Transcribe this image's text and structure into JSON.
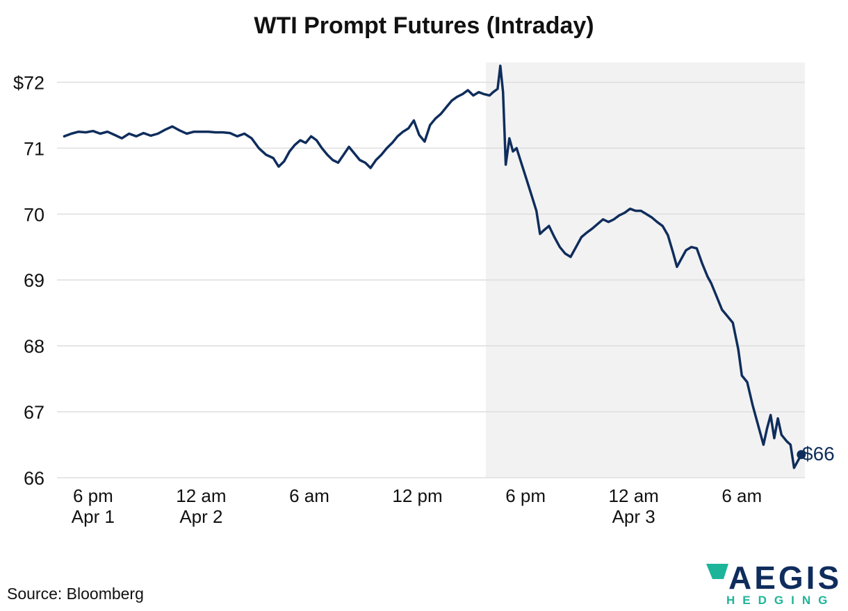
{
  "chart_data": {
    "type": "line",
    "title": "WTI Prompt Futures (Intraday)",
    "xlabel": "",
    "ylabel": "",
    "ylim": [
      66,
      72.3
    ],
    "yticks": [
      66,
      67,
      68,
      69,
      70,
      71,
      72
    ],
    "ytick_labels": [
      "66",
      "67",
      "68",
      "69",
      "70",
      "71",
      "$72"
    ],
    "x_unit": "hours since 4 pm Apr 1",
    "xlim": [
      0,
      41.5
    ],
    "xticks": [
      {
        "x": 2,
        "line1": "6 pm",
        "line2": "Apr 1"
      },
      {
        "x": 8,
        "line1": "12 am",
        "line2": "Apr 2"
      },
      {
        "x": 14,
        "line1": "6 am",
        "line2": ""
      },
      {
        "x": 20,
        "line1": "12 pm",
        "line2": ""
      },
      {
        "x": 26,
        "line1": "6 pm",
        "line2": ""
      },
      {
        "x": 32,
        "line1": "12 am",
        "line2": "Apr 3"
      },
      {
        "x": 38,
        "line1": "6 am",
        "line2": ""
      }
    ],
    "shaded_region": {
      "from": 23.8,
      "to": 41.5,
      "color": "#f2f2f2"
    },
    "grid": "horizontal",
    "series": [
      {
        "name": "WTI",
        "color": "#0f2d5c",
        "points": [
          [
            0.4,
            71.18
          ],
          [
            0.8,
            71.22
          ],
          [
            1.2,
            71.25
          ],
          [
            1.6,
            71.24
          ],
          [
            2.0,
            71.26
          ],
          [
            2.4,
            71.22
          ],
          [
            2.8,
            71.25
          ],
          [
            3.2,
            71.2
          ],
          [
            3.6,
            71.15
          ],
          [
            4.0,
            71.22
          ],
          [
            4.4,
            71.18
          ],
          [
            4.8,
            71.23
          ],
          [
            5.2,
            71.19
          ],
          [
            5.6,
            71.22
          ],
          [
            6.0,
            71.28
          ],
          [
            6.4,
            71.33
          ],
          [
            6.8,
            71.27
          ],
          [
            7.2,
            71.22
          ],
          [
            7.6,
            71.25
          ],
          [
            8.0,
            71.25
          ],
          [
            8.4,
            71.25
          ],
          [
            8.8,
            71.24
          ],
          [
            9.2,
            71.24
          ],
          [
            9.6,
            71.23
          ],
          [
            10.0,
            71.18
          ],
          [
            10.4,
            71.22
          ],
          [
            10.8,
            71.15
          ],
          [
            11.2,
            71.0
          ],
          [
            11.6,
            70.9
          ],
          [
            12.0,
            70.85
          ],
          [
            12.3,
            70.72
          ],
          [
            12.6,
            70.8
          ],
          [
            12.9,
            70.95
          ],
          [
            13.2,
            71.05
          ],
          [
            13.5,
            71.12
          ],
          [
            13.8,
            71.08
          ],
          [
            14.1,
            71.18
          ],
          [
            14.4,
            71.12
          ],
          [
            14.7,
            71.0
          ],
          [
            15.0,
            70.9
          ],
          [
            15.3,
            70.82
          ],
          [
            15.6,
            70.78
          ],
          [
            15.9,
            70.9
          ],
          [
            16.2,
            71.02
          ],
          [
            16.5,
            70.92
          ],
          [
            16.8,
            70.82
          ],
          [
            17.1,
            70.78
          ],
          [
            17.4,
            70.7
          ],
          [
            17.7,
            70.82
          ],
          [
            18.0,
            70.9
          ],
          [
            18.3,
            71.0
          ],
          [
            18.6,
            71.08
          ],
          [
            18.9,
            71.18
          ],
          [
            19.2,
            71.25
          ],
          [
            19.5,
            71.3
          ],
          [
            19.8,
            71.42
          ],
          [
            20.1,
            71.2
          ],
          [
            20.4,
            71.1
          ],
          [
            20.7,
            71.35
          ],
          [
            21.0,
            71.45
          ],
          [
            21.3,
            71.52
          ],
          [
            21.6,
            71.62
          ],
          [
            21.9,
            71.72
          ],
          [
            22.2,
            71.78
          ],
          [
            22.5,
            71.82
          ],
          [
            22.8,
            71.88
          ],
          [
            23.1,
            71.8
          ],
          [
            23.4,
            71.85
          ],
          [
            23.7,
            71.82
          ],
          [
            24.0,
            71.8
          ],
          [
            24.2,
            71.85
          ],
          [
            24.45,
            71.9
          ],
          [
            24.6,
            72.25
          ],
          [
            24.75,
            71.85
          ],
          [
            24.9,
            70.75
          ],
          [
            25.1,
            71.15
          ],
          [
            25.3,
            70.95
          ],
          [
            25.5,
            71.0
          ],
          [
            26.2,
            70.4
          ],
          [
            26.6,
            70.05
          ],
          [
            26.8,
            69.7
          ],
          [
            27.0,
            69.75
          ],
          [
            27.3,
            69.82
          ],
          [
            27.6,
            69.65
          ],
          [
            27.9,
            69.5
          ],
          [
            28.2,
            69.4
          ],
          [
            28.5,
            69.35
          ],
          [
            28.8,
            69.5
          ],
          [
            29.1,
            69.65
          ],
          [
            29.4,
            69.72
          ],
          [
            29.7,
            69.78
          ],
          [
            30.0,
            69.85
          ],
          [
            30.3,
            69.92
          ],
          [
            30.6,
            69.88
          ],
          [
            30.9,
            69.92
          ],
          [
            31.2,
            69.98
          ],
          [
            31.5,
            70.02
          ],
          [
            31.8,
            70.08
          ],
          [
            32.1,
            70.05
          ],
          [
            32.4,
            70.05
          ],
          [
            32.7,
            70.0
          ],
          [
            33.0,
            69.95
          ],
          [
            33.3,
            69.88
          ],
          [
            33.6,
            69.82
          ],
          [
            33.9,
            69.68
          ],
          [
            34.2,
            69.4
          ],
          [
            34.4,
            69.2
          ],
          [
            34.6,
            69.3
          ],
          [
            34.9,
            69.45
          ],
          [
            35.2,
            69.5
          ],
          [
            35.5,
            69.48
          ],
          [
            35.8,
            69.25
          ],
          [
            36.1,
            69.05
          ],
          [
            36.3,
            68.95
          ],
          [
            36.6,
            68.75
          ],
          [
            36.9,
            68.55
          ],
          [
            37.2,
            68.45
          ],
          [
            37.5,
            68.35
          ],
          [
            37.8,
            67.95
          ],
          [
            38.0,
            67.55
          ],
          [
            38.3,
            67.45
          ],
          [
            38.6,
            67.1
          ],
          [
            38.9,
            66.8
          ],
          [
            39.2,
            66.5
          ],
          [
            39.4,
            66.75
          ],
          [
            39.6,
            66.95
          ],
          [
            39.8,
            66.6
          ],
          [
            40.0,
            66.9
          ],
          [
            40.2,
            66.65
          ],
          [
            40.5,
            66.55
          ],
          [
            40.7,
            66.5
          ],
          [
            40.9,
            66.15
          ],
          [
            41.1,
            66.25
          ],
          [
            41.3,
            66.35
          ]
        ],
        "end_label": "$66"
      }
    ]
  },
  "footer": {
    "source": "Source: Bloomberg"
  },
  "logo": {
    "main": "AEGIS",
    "sub": "HEDGING",
    "colors": {
      "navy": "#0f2d5c",
      "green": "#1db59a"
    }
  }
}
